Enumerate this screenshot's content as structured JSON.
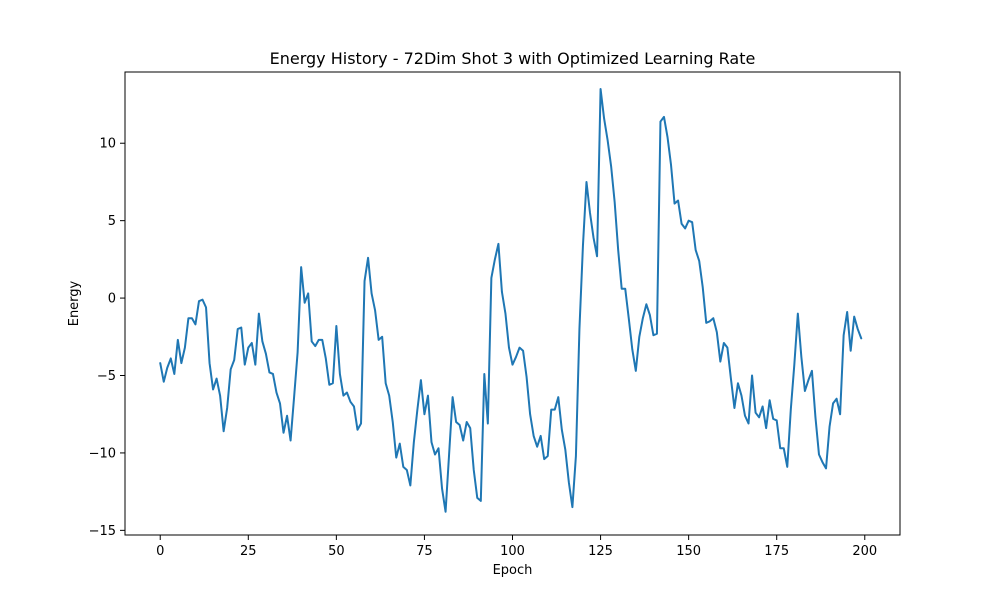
{
  "chart_data": {
    "type": "line",
    "title": "Energy History - 72Dim Shot 3 with Optimized Learning Rate",
    "xlabel": "Epoch",
    "ylabel": "Energy",
    "xlim": [
      -10,
      210
    ],
    "ylim": [
      -15.3,
      14.6
    ],
    "xticks": [
      0,
      25,
      50,
      75,
      100,
      125,
      150,
      175,
      200
    ],
    "yticks": [
      -15,
      -10,
      -5,
      0,
      5,
      10
    ],
    "grid": false,
    "legend": "none",
    "series": [
      {
        "color": "#1f77b4",
        "x": [
          0,
          1,
          2,
          3,
          4,
          5,
          6,
          7,
          8,
          9,
          10,
          11,
          12,
          13,
          14,
          15,
          16,
          17,
          18,
          19,
          20,
          21,
          22,
          23,
          24,
          25,
          26,
          27,
          28,
          29,
          30,
          31,
          32,
          33,
          34,
          35,
          36,
          37,
          38,
          39,
          40,
          41,
          42,
          43,
          44,
          45,
          46,
          47,
          48,
          49,
          50,
          51,
          52,
          53,
          54,
          55,
          56,
          57,
          58,
          59,
          60,
          61,
          62,
          63,
          64,
          65,
          66,
          67,
          68,
          69,
          70,
          71,
          72,
          73,
          74,
          75,
          76,
          77,
          78,
          79,
          80,
          81,
          82,
          83,
          84,
          85,
          86,
          87,
          88,
          89,
          90,
          91,
          92,
          93,
          94,
          95,
          96,
          97,
          98,
          99,
          100,
          101,
          102,
          103,
          104,
          105,
          106,
          107,
          108,
          109,
          110,
          111,
          112,
          113,
          114,
          115,
          116,
          117,
          118,
          119,
          120,
          121,
          122,
          123,
          124,
          125,
          126,
          127,
          128,
          129,
          130,
          131,
          132,
          133,
          134,
          135,
          136,
          137,
          138,
          139,
          140,
          141,
          142,
          143,
          144,
          145,
          146,
          147,
          148,
          149,
          150,
          151,
          152,
          153,
          154,
          155,
          156,
          157,
          158,
          159,
          160,
          161,
          162,
          163,
          164,
          165,
          166,
          167,
          168,
          169,
          170,
          171,
          172,
          173,
          174,
          175,
          176,
          177,
          178,
          179,
          180,
          181,
          182,
          183,
          184,
          185,
          186,
          187,
          188,
          189,
          190,
          191,
          192,
          193,
          194,
          195,
          196,
          197,
          198,
          199
        ],
        "y": [
          -4.2,
          -5.4,
          -4.5,
          -3.9,
          -4.9,
          -2.7,
          -4.2,
          -3.2,
          -1.3,
          -1.3,
          -1.7,
          -0.2,
          -0.1,
          -0.6,
          -4.2,
          -5.9,
          -5.2,
          -6.3,
          -8.6,
          -7.1,
          -4.6,
          -4.0,
          -2.0,
          -1.9,
          -4.3,
          -3.2,
          -2.9,
          -4.3,
          -1.0,
          -2.8,
          -3.6,
          -4.8,
          -4.9,
          -6.1,
          -6.8,
          -8.7,
          -7.6,
          -9.2,
          -6.4,
          -3.5,
          2.0,
          -0.3,
          0.3,
          -2.8,
          -3.1,
          -2.7,
          -2.7,
          -3.9,
          -5.6,
          -5.5,
          -1.8,
          -4.9,
          -6.3,
          -6.1,
          -6.7,
          -7.0,
          -8.5,
          -8.1,
          1.1,
          2.6,
          0.3,
          -0.8,
          -2.7,
          -2.5,
          -5.5,
          -6.3,
          -8.0,
          -10.3,
          -9.4,
          -10.9,
          -11.1,
          -12.1,
          -9.3,
          -7.2,
          -5.3,
          -7.5,
          -6.3,
          -9.3,
          -10.1,
          -9.7,
          -12.3,
          -13.8,
          -10.1,
          -6.4,
          -8.0,
          -8.2,
          -9.2,
          -8.0,
          -8.4,
          -11.1,
          -12.9,
          -13.1,
          -4.9,
          -8.1,
          1.3,
          2.5,
          3.5,
          0.4,
          -1.0,
          -3.2,
          -4.3,
          -3.8,
          -3.2,
          -3.4,
          -5.1,
          -7.5,
          -8.9,
          -9.6,
          -8.9,
          -10.4,
          -10.2,
          -7.2,
          -7.2,
          -6.4,
          -8.5,
          -9.8,
          -11.9,
          -13.5,
          -10.2,
          -2.0,
          3.4,
          7.5,
          5.5,
          3.9,
          2.7,
          13.5,
          11.6,
          10.2,
          8.5,
          6.2,
          3.1,
          0.6,
          0.6,
          -1.3,
          -3.3,
          -4.7,
          -2.5,
          -1.3,
          -0.4,
          -1.1,
          -2.4,
          -2.3,
          11.4,
          11.7,
          10.4,
          8.6,
          6.1,
          6.3,
          4.8,
          4.5,
          5.0,
          4.9,
          3.1,
          2.4,
          0.7,
          -1.6,
          -1.5,
          -1.3,
          -2.2,
          -4.1,
          -2.9,
          -3.2,
          -5.2,
          -7.1,
          -5.5,
          -6.3,
          -7.6,
          -8.1,
          -5.0,
          -7.4,
          -7.7,
          -7.0,
          -8.4,
          -6.6,
          -7.8,
          -7.9,
          -9.7,
          -9.7,
          -10.9,
          -7.2,
          -4.3,
          -1.0,
          -3.8,
          -6.0,
          -5.3,
          -4.7,
          -7.7,
          -10.1,
          -10.6,
          -11.0,
          -8.3,
          -6.8,
          -6.5,
          -7.5,
          -2.4,
          -0.9,
          -3.4,
          -1.2,
          -2.0,
          -2.6
        ]
      }
    ]
  }
}
